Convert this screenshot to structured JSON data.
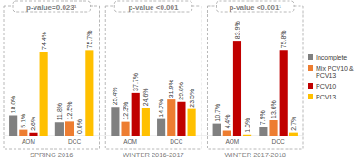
{
  "chart_data": {
    "type": "bar",
    "categories": [
      "AOM",
      "DCC",
      "AOM",
      "DCC",
      "AOM",
      "DCC"
    ],
    "group_labels": [
      "SPRING 2016",
      "WINTER 2016-2017",
      "WINTER 2017-2018"
    ],
    "annotations": [
      "p-value=0.023¹",
      "p-value <0.001",
      "p-value <0.001¹"
    ],
    "series": [
      {
        "name": "Incomplete",
        "color": "#808080",
        "values": [
          18.0,
          11.8,
          25.4,
          14.7,
          10.7,
          7.9
        ],
        "value_labels": [
          "18.0%",
          "11.8%",
          "25.4%",
          "14.7%",
          "10.7%",
          "7.9%"
        ]
      },
      {
        "name": "Mix PCV10 & PCV13",
        "color": "#ed7d31",
        "values": [
          5.1,
          12.5,
          12.3,
          31.9,
          4.4,
          13.6
        ],
        "value_labels": [
          "5.1%",
          "12.5%",
          "12.3%",
          "31.9%",
          "4.4%",
          "13.6%"
        ]
      },
      {
        "name": "PCV10",
        "color": "#c00000",
        "values": [
          2.6,
          0.0,
          37.7,
          29.8,
          83.9,
          75.8
        ],
        "value_labels": [
          "2.6%",
          "0.0%",
          "37.7%",
          "29.8%",
          "83.9%",
          "75.8%"
        ]
      },
      {
        "name": "PCV13",
        "color": "#ffc000",
        "values": [
          74.4,
          75.7,
          24.6,
          23.5,
          1.0,
          2.7
        ],
        "value_labels": [
          "74.4%",
          "75.7%",
          "24.6%",
          "23.5%",
          "1.0%",
          "2.7%"
        ]
      }
    ],
    "ylim": [
      0,
      100
    ],
    "tick_labels": false,
    "data_labels": true,
    "legend": "right"
  }
}
